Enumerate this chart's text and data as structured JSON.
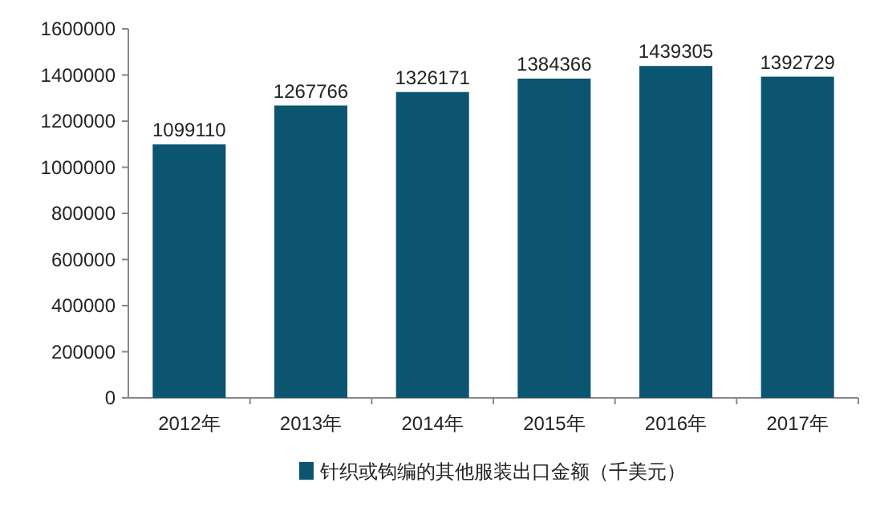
{
  "chart_data": {
    "type": "bar",
    "categories": [
      "2012年",
      "2013年",
      "2014年",
      "2015年",
      "2016年",
      "2017年"
    ],
    "series": [
      {
        "name": "针织或钩编的其他服装出口金额（千美元）",
        "color": "#0b5570",
        "values": [
          1099110,
          1267766,
          1326171,
          1384366,
          1439305,
          1392729
        ]
      }
    ],
    "ylim": [
      0,
      1600000
    ],
    "yticks": [
      0,
      200000,
      400000,
      600000,
      800000,
      1000000,
      1200000,
      1400000,
      1600000
    ],
    "data_labels": true,
    "legend": "bottom"
  }
}
